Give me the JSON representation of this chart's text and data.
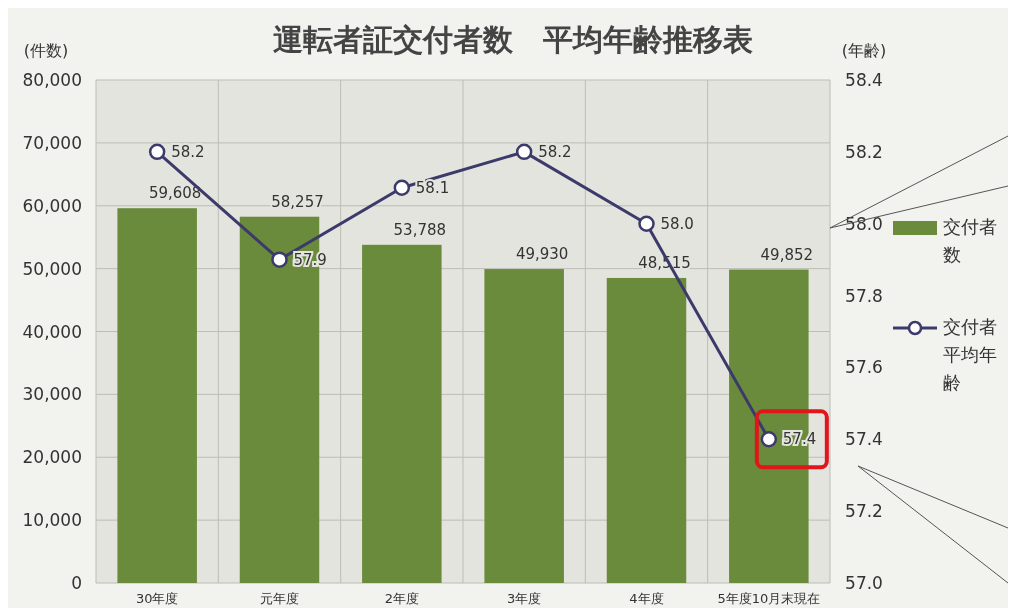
{
  "chart_data": {
    "type": "bar",
    "title": "運転者証交付者数　平均年齢推移表",
    "ylabel": "(件数)",
    "y2label": "(年齢)",
    "categories": [
      "30年度",
      "元年度",
      "2年度",
      "3年度",
      "4年度",
      "5年度10月末現在"
    ],
    "series": [
      {
        "name": "交付者数",
        "color": "#6b8b3c",
        "values": [
          59608,
          58257,
          53788,
          49930,
          48515,
          49852
        ],
        "value_labels": [
          "59,608",
          "58,257",
          "53,788",
          "49,930",
          "48,515",
          "49,852"
        ]
      },
      {
        "name": "交付者平均年齢",
        "type": "line",
        "axis": "y2",
        "color": "#3b3a6a",
        "marker": "circle",
        "values": [
          58.2,
          57.9,
          58.1,
          58.2,
          58.0,
          57.4
        ],
        "value_labels": [
          "58.2",
          "57.9",
          "58.1",
          "58.2",
          "58.0",
          "57.4"
        ]
      }
    ],
    "ylim": [
      0,
      80000
    ],
    "yticks": [
      0,
      {
        "value": 10000,
        "label": "10,000"
      },
      {
        "value": 20000,
        "label": "20,000"
      },
      {
        "value": 30000,
        "label": "30,000"
      },
      {
        "value": 40000,
        "label": "40,000"
      },
      {
        "value": 50000,
        "label": "50,000"
      },
      {
        "value": 60000,
        "label": "60,000"
      },
      {
        "value": 70000,
        "label": "70,000"
      },
      {
        "value": 80000,
        "label": "80,000"
      }
    ],
    "y2lim": [
      57.0,
      58.4
    ],
    "y2ticks": [
      {
        "value": 57.0,
        "label": "57.0"
      },
      {
        "value": 57.2,
        "label": "57.2"
      },
      {
        "value": 57.4,
        "label": "57.4"
      },
      {
        "value": 57.6,
        "label": "57.6"
      },
      {
        "value": 57.8,
        "label": "57.8"
      },
      {
        "value": 58.0,
        "label": "58.0"
      },
      {
        "value": 58.2,
        "label": "58.2"
      },
      {
        "value": 58.4,
        "label": "58.4"
      }
    ],
    "grid": true,
    "legend": "right"
  }
}
